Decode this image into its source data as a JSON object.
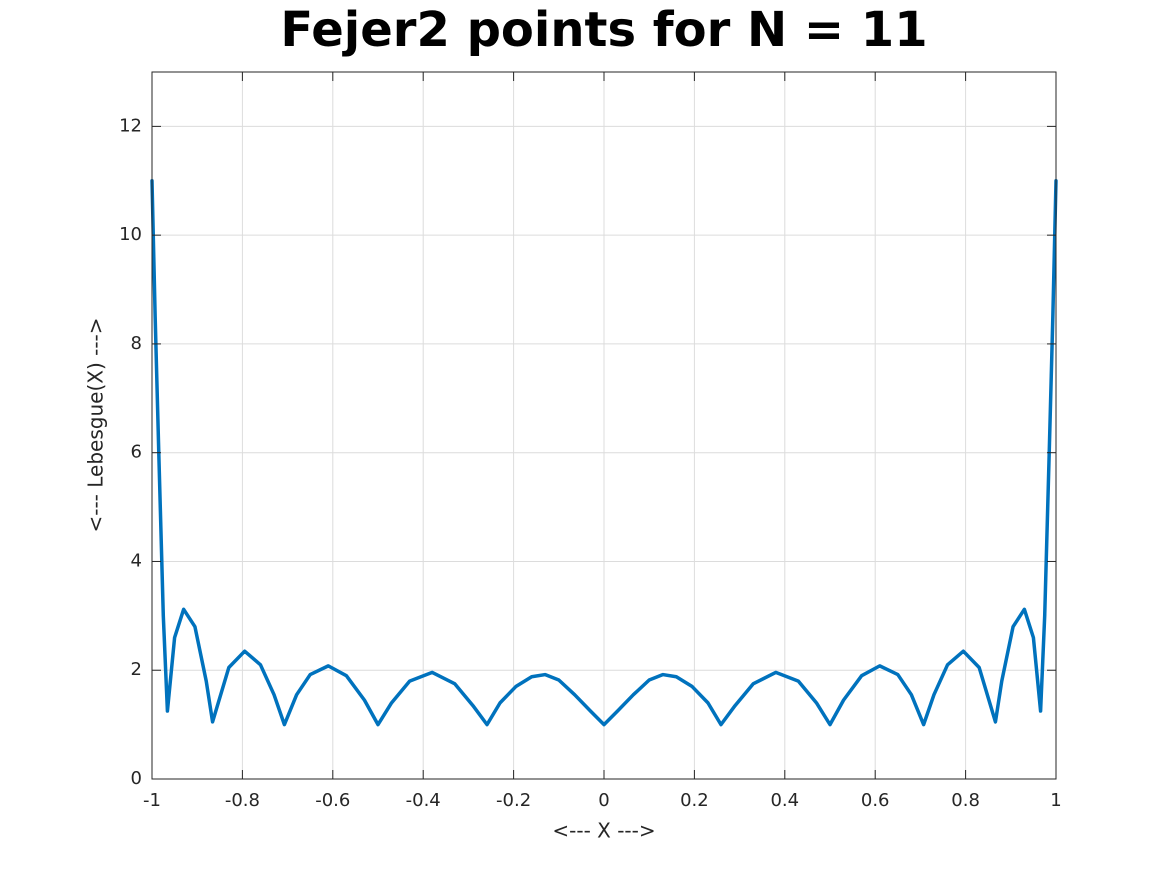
{
  "chart_data": {
    "type": "line",
    "title": "Fejer2 points for N = 11",
    "xlabel": "<--- X --->",
    "ylabel": "<--- Lebesgue(X) --->",
    "x": [
      -1,
      -0.993,
      -0.985,
      -0.975,
      -0.9659,
      -0.95,
      -0.93,
      -0.905,
      -0.88,
      -0.866,
      -0.83,
      -0.795,
      -0.76,
      -0.73,
      -0.7071,
      -0.68,
      -0.65,
      -0.61,
      -0.57,
      -0.53,
      -0.5,
      -0.47,
      -0.43,
      -0.38,
      -0.33,
      -0.29,
      -0.2588,
      -0.23,
      -0.195,
      -0.16,
      -0.13,
      -0.1,
      -0.065,
      -0.03,
      0,
      0.03,
      0.065,
      0.1,
      0.13,
      0.16,
      0.195,
      0.23,
      0.2588,
      0.29,
      0.33,
      0.38,
      0.43,
      0.47,
      0.5,
      0.53,
      0.57,
      0.61,
      0.65,
      0.68,
      0.7071,
      0.73,
      0.76,
      0.795,
      0.83,
      0.866,
      0.88,
      0.905,
      0.93,
      0.95,
      0.9659,
      0.975,
      0.985,
      0.993,
      1
    ],
    "series": [
      {
        "name": "Lebesgue",
        "color": "#0072bd",
        "values": [
          11.0,
          8.5,
          6.0,
          3.0,
          1.25,
          2.6,
          3.12,
          2.8,
          1.8,
          1.05,
          2.05,
          2.35,
          2.1,
          1.55,
          1.0,
          1.55,
          1.92,
          2.08,
          1.9,
          1.45,
          1.0,
          1.4,
          1.8,
          1.96,
          1.75,
          1.35,
          1.0,
          1.4,
          1.7,
          1.88,
          1.92,
          1.82,
          1.55,
          1.25,
          1.0,
          1.25,
          1.55,
          1.82,
          1.92,
          1.88,
          1.7,
          1.4,
          1.0,
          1.35,
          1.75,
          1.96,
          1.8,
          1.4,
          1.0,
          1.45,
          1.9,
          2.08,
          1.92,
          1.55,
          1.0,
          1.55,
          2.1,
          2.35,
          2.05,
          1.05,
          1.8,
          2.8,
          3.12,
          2.6,
          1.25,
          3.0,
          6.0,
          8.5,
          11.0
        ]
      }
    ],
    "xlim": [
      -1,
      1
    ],
    "xticks": [
      -1,
      -0.8,
      -0.6,
      -0.4,
      -0.2,
      0,
      0.2,
      0.4,
      0.6,
      0.8,
      1
    ],
    "ylim": [
      0,
      13
    ],
    "yticks": [
      0,
      2,
      4,
      6,
      8,
      10,
      12
    ],
    "grid": true
  }
}
